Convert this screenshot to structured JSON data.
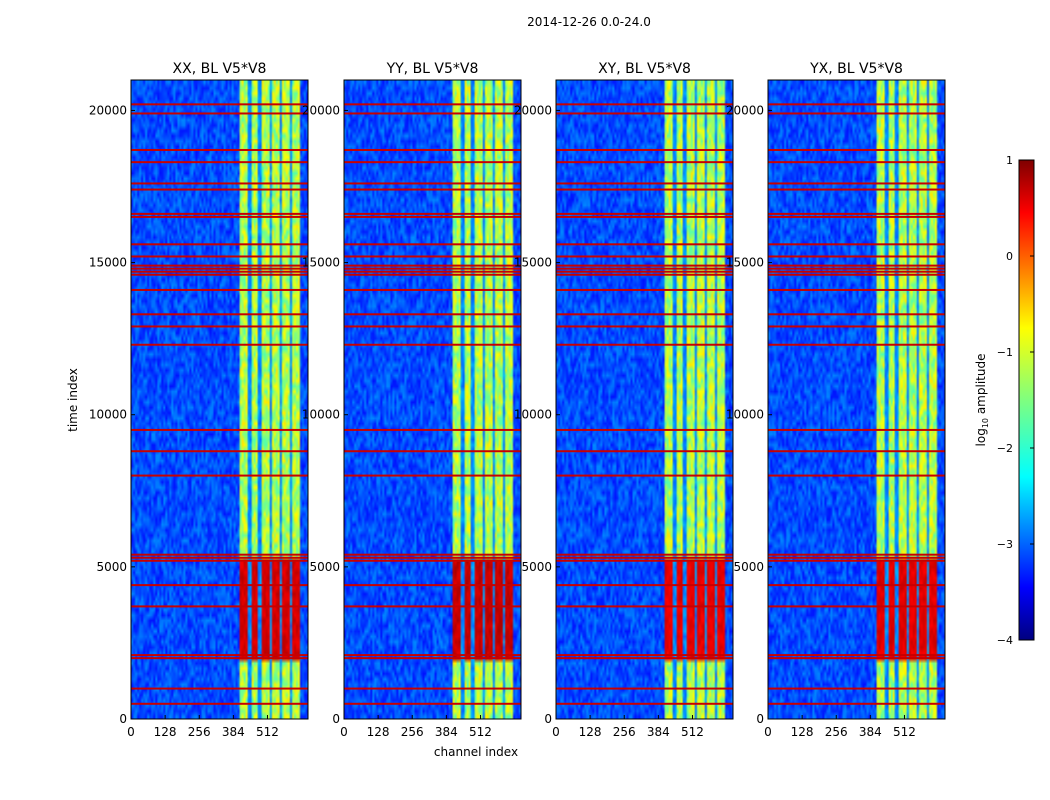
{
  "chart_data": {
    "type": "heatmap",
    "suptitle": "2014-12-26 0.0-24.0",
    "xlabel": "channel index",
    "ylabel": "time index",
    "xlim": [
      0,
      664
    ],
    "ylim": [
      0,
      21000
    ],
    "xticks": [
      0,
      128,
      256,
      384,
      512
    ],
    "xtick_labels": [
      "0",
      "128",
      "256",
      "384",
      "512"
    ],
    "yticks": [
      0,
      5000,
      10000,
      15000,
      20000
    ],
    "ytick_labels": [
      "0",
      "5000",
      "10000",
      "15000",
      "20000"
    ],
    "colormap": "jet",
    "colorbar": {
      "label": "log10 amplitude",
      "label_main": "log",
      "label_sub": "10",
      "label_rest": " amplitude",
      "range": [
        -4,
        1
      ],
      "ticks": [
        1,
        0,
        -1,
        -2,
        -3,
        -4
      ],
      "tick_labels": [
        "1",
        "0",
        "−1",
        "−2",
        "−3",
        "−4"
      ]
    },
    "panels": [
      {
        "title": "XX, BL V5*V8",
        "burst_level": 0.95,
        "burst_edge": 5300
      },
      {
        "title": "YY, BL V5*V8",
        "burst_level": 1.0,
        "burst_edge": 5200
      },
      {
        "title": "XY, BL V5*V8",
        "burst_level": 0.88,
        "burst_edge": 5300
      },
      {
        "title": "YX, BL V5*V8",
        "burst_level": 0.9,
        "burst_edge": 5300
      }
    ],
    "signal_band_channels": [
      405,
      632
    ],
    "channel_gaps": [
      445,
      482,
      522,
      560,
      600
    ],
    "rfi_rows_time_index": [
      500,
      1000,
      2000,
      2100,
      3700,
      4400,
      5200,
      5300,
      5400,
      8000,
      8800,
      9500,
      12300,
      12900,
      13300,
      14100,
      14600,
      14700,
      14800,
      14900,
      15200,
      15600,
      16500,
      16600,
      17400,
      17600,
      18300,
      18700,
      19900,
      20200
    ],
    "rfi_row_level": 0.15
  }
}
